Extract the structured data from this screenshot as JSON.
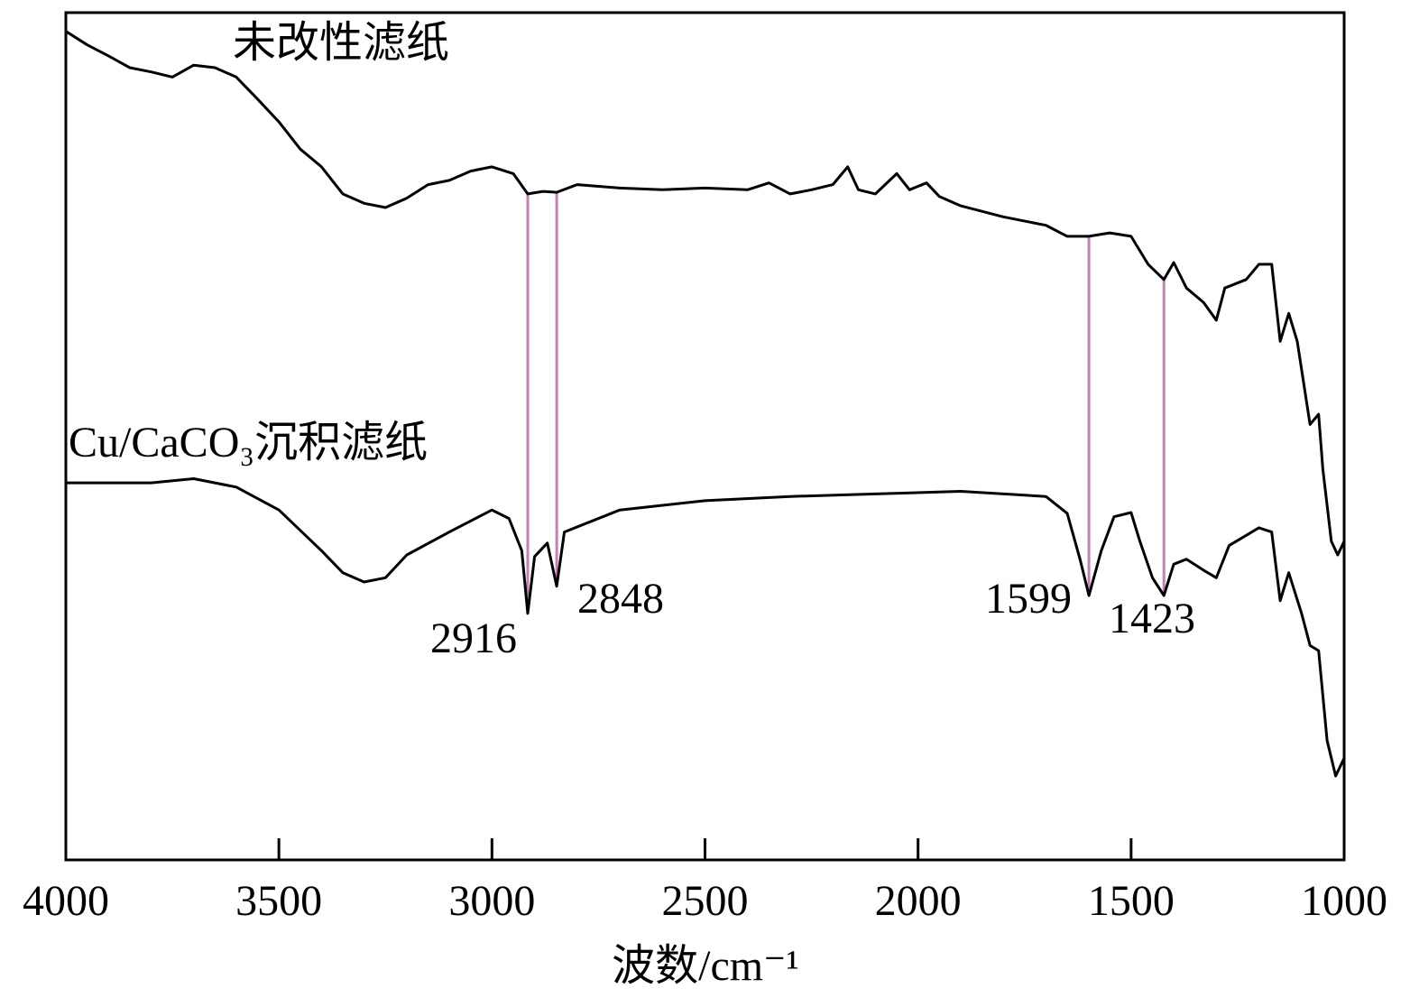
{
  "chart_data": {
    "type": "line",
    "xlabel": "波数/cm⁻¹",
    "xlim": [
      4000,
      1000
    ],
    "xticks": [
      4000,
      3500,
      3000,
      2500,
      2000,
      1500,
      1000
    ],
    "ylim": [
      0,
      100
    ],
    "peaks": [
      2916,
      2848,
      1599,
      1423
    ],
    "peak_color": "#c77fb8",
    "series": [
      {
        "name": "未改性滤纸",
        "color": "#000000",
        "x": [
          4000,
          3950,
          3900,
          3850,
          3800,
          3750,
          3700,
          3650,
          3600,
          3550,
          3500,
          3450,
          3400,
          3350,
          3300,
          3250,
          3200,
          3150,
          3100,
          3050,
          3000,
          2950,
          2916,
          2880,
          2848,
          2800,
          2700,
          2600,
          2500,
          2400,
          2350,
          2300,
          2250,
          2200,
          2165,
          2140,
          2100,
          2050,
          2020,
          1980,
          1950,
          1900,
          1800,
          1700,
          1650,
          1599,
          1550,
          1500,
          1460,
          1423,
          1400,
          1370,
          1330,
          1300,
          1280,
          1230,
          1200,
          1170,
          1150,
          1130,
          1110,
          1080,
          1060,
          1050,
          1030,
          1015,
          1000
        ],
        "values": [
          97.8,
          96.2,
          94.9,
          93.5,
          93.0,
          92.4,
          93.8,
          93.5,
          92.4,
          89.8,
          87.1,
          83.9,
          81.8,
          78.6,
          77.5,
          77.0,
          78.1,
          79.7,
          80.2,
          81.3,
          81.8,
          81.0,
          78.6,
          78.9,
          78.8,
          79.7,
          79.3,
          79.1,
          79.3,
          79.1,
          79.9,
          78.6,
          79.1,
          79.7,
          81.8,
          79.1,
          78.6,
          81.0,
          79.1,
          79.9,
          78.3,
          77.2,
          75.9,
          74.9,
          73.6,
          73.6,
          74.0,
          73.6,
          70.3,
          68.5,
          70.5,
          67.5,
          65.8,
          63.7,
          67.5,
          68.5,
          70.3,
          70.3,
          61.2,
          64.5,
          61.2,
          51.4,
          52.6,
          46.1,
          37.6,
          36.0,
          37.6
        ]
      },
      {
        "name": "Cu/CaCO₃沉积滤纸",
        "color": "#000000",
        "x": [
          4000,
          3800,
          3700,
          3600,
          3500,
          3400,
          3350,
          3300,
          3250,
          3200,
          3100,
          3000,
          2960,
          2930,
          2916,
          2900,
          2870,
          2848,
          2830,
          2700,
          2500,
          2300,
          2100,
          1900,
          1700,
          1650,
          1620,
          1599,
          1570,
          1540,
          1500,
          1480,
          1450,
          1423,
          1400,
          1370,
          1330,
          1300,
          1270,
          1200,
          1170,
          1150,
          1130,
          1100,
          1080,
          1060,
          1040,
          1020,
          1000
        ],
        "values": [
          44.5,
          44.5,
          45.0,
          44.0,
          41.3,
          36.5,
          33.9,
          32.8,
          33.3,
          36.0,
          38.7,
          41.3,
          40.3,
          36.5,
          29.1,
          35.8,
          37.4,
          32.3,
          38.7,
          41.3,
          42.4,
          42.9,
          43.2,
          43.5,
          42.9,
          40.9,
          35.5,
          31.2,
          36.5,
          40.5,
          41.0,
          37.7,
          33.3,
          31.2,
          34.9,
          35.5,
          34.2,
          33.3,
          37.1,
          39.2,
          38.7,
          30.6,
          33.9,
          29.1,
          25.3,
          24.7,
          14.1,
          9.9,
          12.0
        ]
      }
    ]
  }
}
